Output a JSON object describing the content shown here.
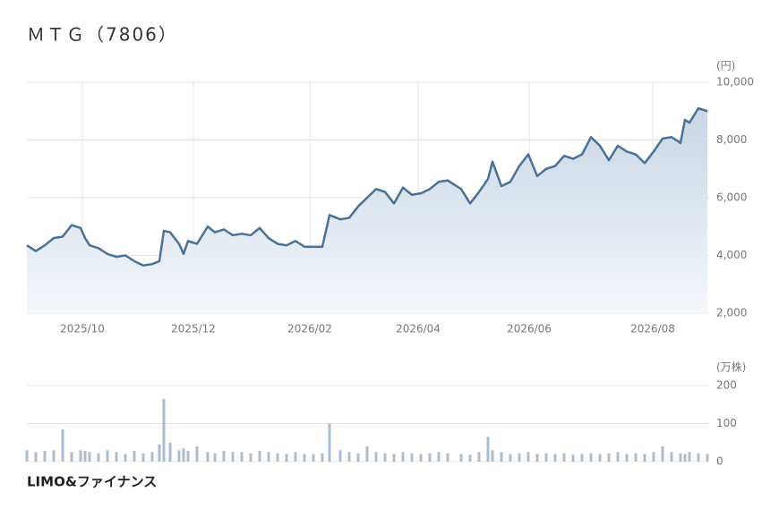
{
  "header": {
    "title": "ＭＴＧ（7806）",
    "logo": "LIMO&ファイナンス"
  },
  "chart_data": [
    {
      "type": "line",
      "unit_label": "(円)",
      "color": "#4a7197",
      "x": [
        0,
        10,
        20,
        30,
        40,
        50,
        60,
        65,
        70,
        80,
        90,
        100,
        110,
        120,
        130,
        140,
        148,
        153,
        160,
        170,
        175,
        180,
        190,
        202,
        210,
        220,
        230,
        240,
        250,
        260,
        270,
        280,
        290,
        300,
        310,
        320,
        330,
        338,
        350,
        360,
        370,
        380,
        390,
        400,
        410,
        420,
        430,
        440,
        450,
        460,
        470,
        485,
        495,
        505,
        515,
        520,
        530,
        540,
        550,
        560,
        570,
        580,
        590,
        600,
        610,
        620,
        630,
        640,
        650,
        660,
        670,
        680,
        690,
        700,
        710,
        720,
        730,
        735,
        740,
        750,
        760
      ],
      "values": [
        4350,
        4150,
        4350,
        4600,
        4650,
        5050,
        4950,
        4600,
        4350,
        4250,
        4050,
        3950,
        4000,
        3800,
        3650,
        3700,
        3800,
        4850,
        4800,
        4400,
        4050,
        4500,
        4400,
        5000,
        4800,
        4900,
        4700,
        4750,
        4700,
        4950,
        4600,
        4400,
        4350,
        4500,
        4300,
        4300,
        4300,
        5400,
        5250,
        5300,
        5700,
        6000,
        6300,
        6200,
        5800,
        6350,
        6100,
        6150,
        6300,
        6550,
        6600,
        6300,
        5800,
        6200,
        6650,
        7250,
        6400,
        6550,
        7100,
        7500,
        6750,
        7000,
        7100,
        7450,
        7350,
        7500,
        8100,
        7800,
        7300,
        7800,
        7600,
        7500,
        7200,
        7600,
        8050,
        8100,
        7900,
        8700,
        8600,
        9100,
        9000
      ],
      "xlim": [
        0,
        762
      ],
      "xticks": [
        {
          "value": 62,
          "label": "2025/10"
        },
        {
          "value": 186,
          "label": "2025/12"
        },
        {
          "value": 316,
          "label": "2026/02"
        },
        {
          "value": 437,
          "label": "2026/04"
        },
        {
          "value": 561,
          "label": "2026/06"
        },
        {
          "value": 699,
          "label": "2026/08"
        }
      ],
      "ylim": [
        2000,
        10000
      ],
      "yticks": [
        {
          "value": 2000,
          "label": "2,000"
        },
        {
          "value": 4000,
          "label": "4,000"
        },
        {
          "value": 6000,
          "label": "6,000"
        },
        {
          "value": 8000,
          "label": "8,000"
        },
        {
          "value": 10000,
          "label": "10,000"
        }
      ],
      "grid": true
    },
    {
      "type": "bar",
      "unit_label": "(万株)",
      "color": "#a9bdd1",
      "x": [
        0,
        10,
        20,
        30,
        40,
        50,
        60,
        65,
        70,
        80,
        90,
        100,
        110,
        120,
        130,
        140,
        148,
        153,
        160,
        170,
        175,
        180,
        190,
        202,
        210,
        220,
        230,
        240,
        250,
        260,
        270,
        280,
        290,
        300,
        310,
        320,
        330,
        338,
        350,
        360,
        370,
        380,
        390,
        400,
        410,
        420,
        430,
        440,
        450,
        460,
        470,
        485,
        495,
        505,
        515,
        520,
        530,
        540,
        550,
        560,
        570,
        580,
        590,
        600,
        610,
        620,
        630,
        640,
        650,
        660,
        670,
        680,
        690,
        700,
        710,
        720,
        730,
        735,
        740,
        750,
        760
      ],
      "values": [
        30,
        25,
        28,
        30,
        85,
        25,
        30,
        28,
        25,
        22,
        30,
        25,
        20,
        28,
        22,
        25,
        45,
        165,
        50,
        30,
        35,
        28,
        40,
        25,
        22,
        28,
        25,
        25,
        22,
        28,
        25,
        22,
        20,
        25,
        20,
        20,
        22,
        100,
        30,
        25,
        22,
        40,
        25,
        22,
        20,
        25,
        22,
        20,
        22,
        25,
        22,
        20,
        18,
        25,
        65,
        30,
        25,
        20,
        22,
        25,
        20,
        22,
        20,
        22,
        18,
        20,
        22,
        20,
        22,
        25,
        20,
        22,
        20,
        25,
        40,
        25,
        22,
        20,
        25,
        22,
        20
      ],
      "xlim": [
        0,
        762
      ],
      "ylim": [
        0,
        200
      ],
      "yticks": [
        0,
        100,
        200
      ],
      "grid": true
    }
  ]
}
